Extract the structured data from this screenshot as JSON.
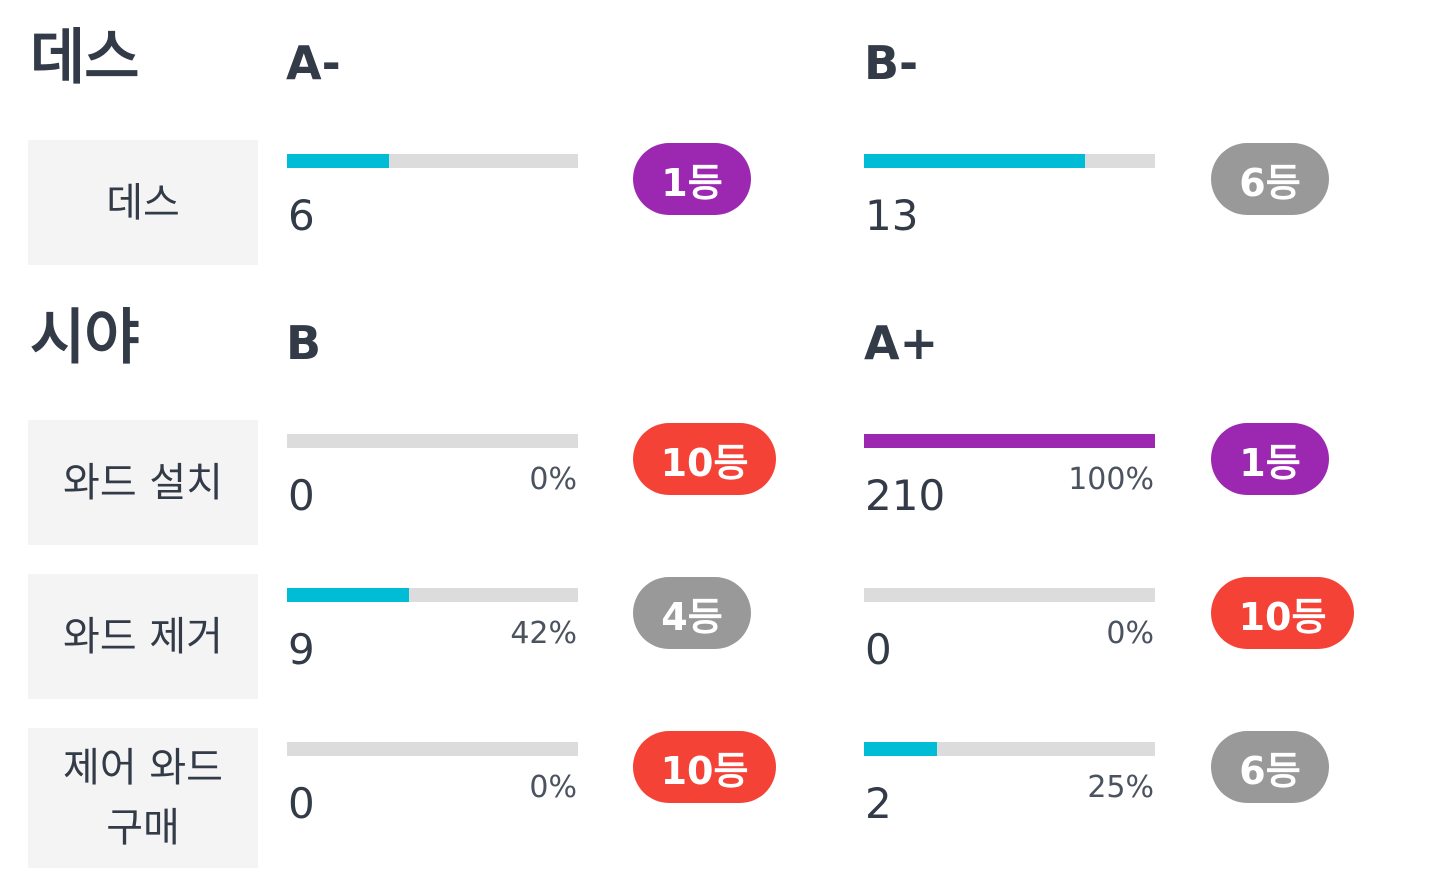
{
  "sections": [
    {
      "title": "데스",
      "grades": [
        "A-",
        "B-"
      ],
      "rows": [
        {
          "label": "데스",
          "cols": [
            {
              "value": "6",
              "percent": "",
              "fill": 0.35,
              "fill_color": "#00bcd4",
              "rank": "1등",
              "rank_color": "#9c27b0"
            },
            {
              "value": "13",
              "percent": "",
              "fill": 0.76,
              "fill_color": "#00bcd4",
              "rank": "6등",
              "rank_color": "#999999"
            }
          ]
        }
      ]
    },
    {
      "title": "시야",
      "grades": [
        "B",
        "A+"
      ],
      "rows": [
        {
          "label": "와드 설치",
          "cols": [
            {
              "value": "0",
              "percent": "0%",
              "fill": 0,
              "fill_color": "#00bcd4",
              "rank": "10등",
              "rank_color": "#f44336"
            },
            {
              "value": "210",
              "percent": "100%",
              "fill": 1.0,
              "fill_color": "#9c27b0",
              "rank": "1등",
              "rank_color": "#9c27b0"
            }
          ]
        },
        {
          "label": "와드 제거",
          "cols": [
            {
              "value": "9",
              "percent": "42%",
              "fill": 0.42,
              "fill_color": "#00bcd4",
              "rank": "4등",
              "rank_color": "#999999"
            },
            {
              "value": "0",
              "percent": "0%",
              "fill": 0,
              "fill_color": "#00bcd4",
              "rank": "10등",
              "rank_color": "#f44336"
            }
          ]
        },
        {
          "label": "제어 와드 구매",
          "cols": [
            {
              "value": "0",
              "percent": "0%",
              "fill": 0,
              "fill_color": "#00bcd4",
              "rank": "10등",
              "rank_color": "#f44336"
            },
            {
              "value": "2",
              "percent": "25%",
              "fill": 0.25,
              "fill_color": "#00bcd4",
              "rank": "6등",
              "rank_color": "#999999"
            }
          ]
        }
      ]
    }
  ]
}
